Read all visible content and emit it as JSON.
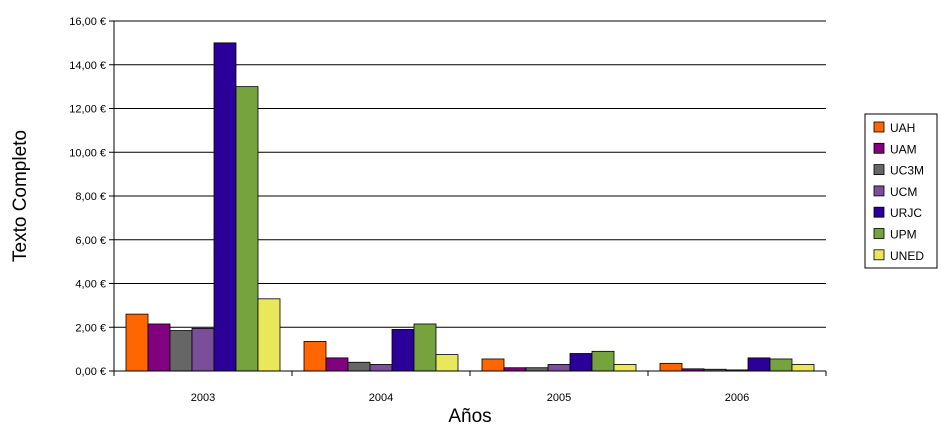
{
  "chart_data": {
    "type": "bar",
    "xlabel": "Años",
    "ylabel": "Texto Completo",
    "categories": [
      "2003",
      "2004",
      "2005",
      "2006"
    ],
    "ylim": [
      0,
      16
    ],
    "yticks": [
      0,
      2,
      4,
      6,
      8,
      10,
      12,
      14,
      16
    ],
    "ytick_labels": [
      "0,00 €",
      "2,00 €",
      "4,00 €",
      "6,00 €",
      "8,00 €",
      "10,00 €",
      "12,00 €",
      "14,00 €",
      "16,00 €"
    ],
    "grid": "horizontal",
    "legend_position": "right",
    "series": [
      {
        "name": "UAH",
        "color": "#ff6600",
        "values": [
          2.6,
          1.35,
          0.55,
          0.35
        ]
      },
      {
        "name": "UAM",
        "color": "#800080",
        "values": [
          2.15,
          0.6,
          0.15,
          0.1
        ]
      },
      {
        "name": "UC3M",
        "color": "#666666",
        "values": [
          1.85,
          0.4,
          0.15,
          0.08
        ]
      },
      {
        "name": "UCM",
        "color": "#7a4f9a",
        "values": [
          1.95,
          0.3,
          0.3,
          0.05
        ]
      },
      {
        "name": "URJC",
        "color": "#2b0099",
        "values": [
          15.0,
          1.9,
          0.8,
          0.6
        ]
      },
      {
        "name": "UPM",
        "color": "#77a33f",
        "values": [
          13.0,
          2.15,
          0.9,
          0.55
        ]
      },
      {
        "name": "UNED",
        "color": "#e8e85a",
        "values": [
          3.3,
          0.75,
          0.3,
          0.3
        ]
      }
    ]
  }
}
